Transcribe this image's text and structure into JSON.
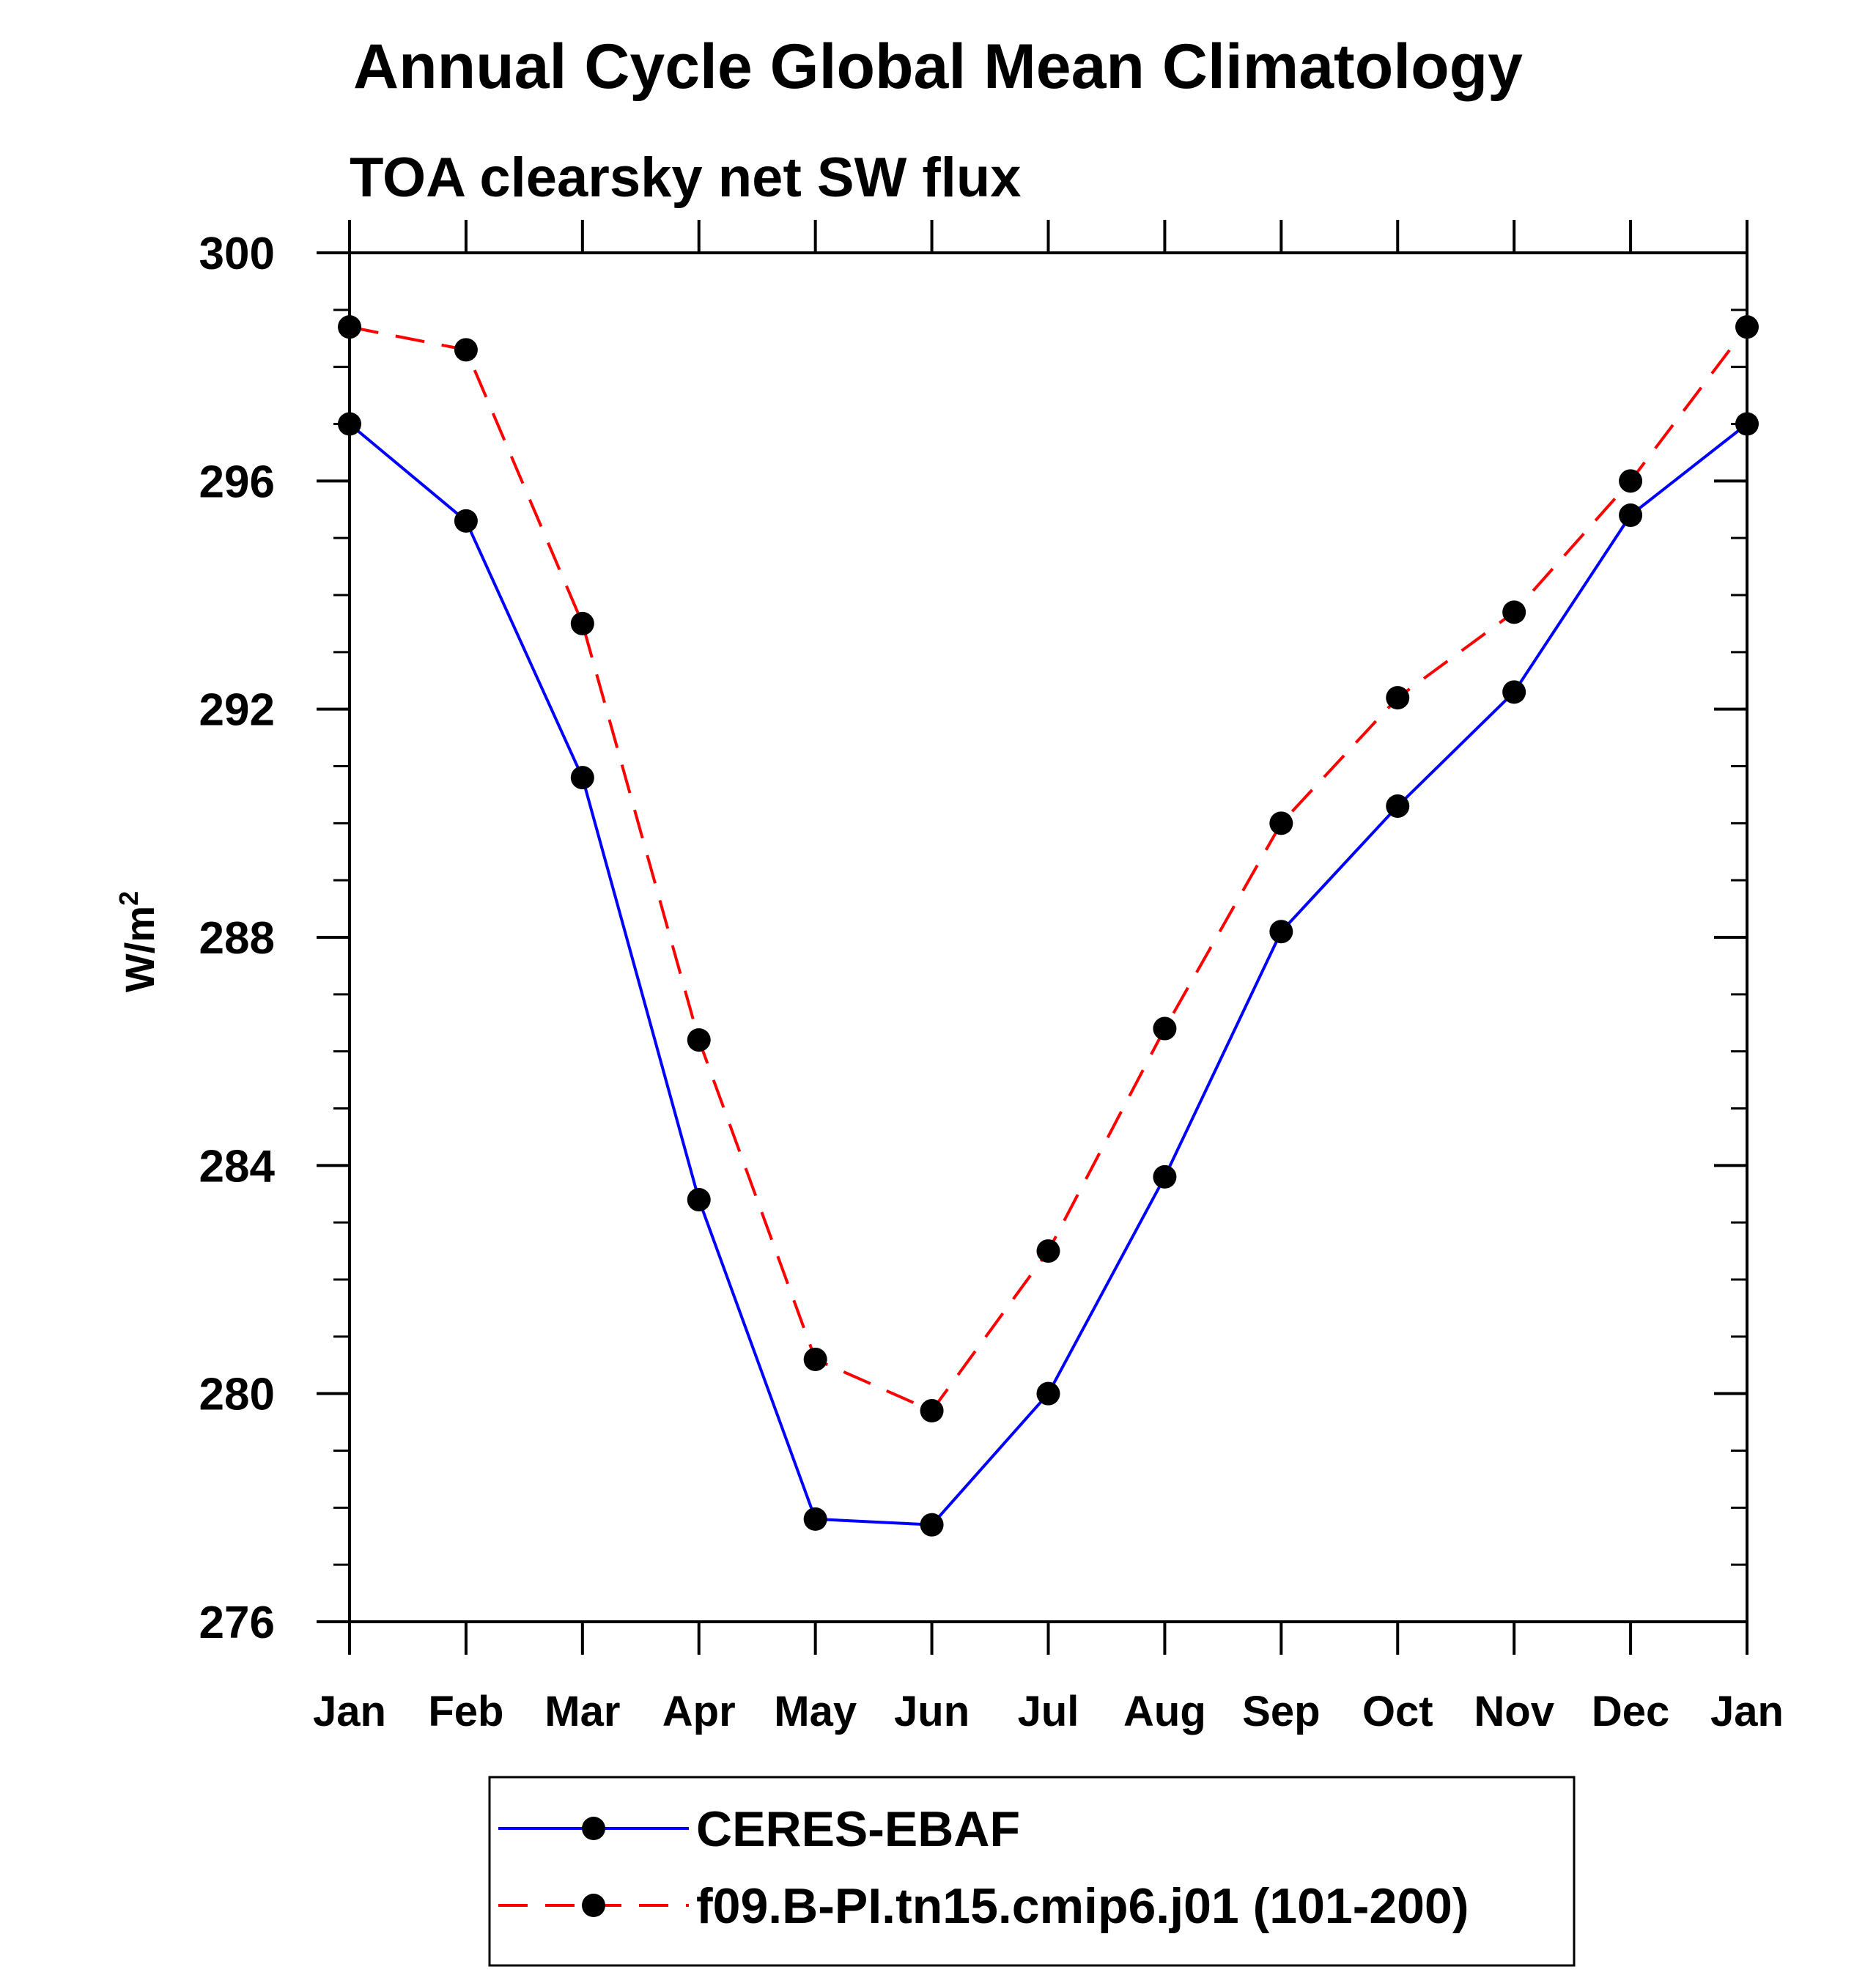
{
  "chart_data": {
    "type": "line",
    "title": "Annual Cycle Global Mean Climatology",
    "subtitle": "TOA clearsky net SW flux",
    "ylabel": "W/m",
    "ylabel_superscript": "2",
    "xlabel": "",
    "ylim": [
      276,
      300
    ],
    "yticks": [
      276,
      280,
      284,
      288,
      292,
      296,
      300
    ],
    "ytick_labels": [
      "276",
      "280",
      "284",
      "288",
      "292",
      "296",
      "300"
    ],
    "y_minor_step": 1,
    "categories": [
      "Jan",
      "Feb",
      "Mar",
      "Apr",
      "May",
      "Jun",
      "Jul",
      "Aug",
      "Sep",
      "Oct",
      "Nov",
      "Dec",
      "Jan"
    ],
    "grid": false,
    "legend_position": "bottom",
    "series": [
      {
        "name": "CERES-EBAF",
        "color": "#0000ff",
        "dash": "solid",
        "marker_color": "#000000",
        "values": [
          297.0,
          295.3,
          290.8,
          283.4,
          277.8,
          277.7,
          280.0,
          283.8,
          288.1,
          290.3,
          292.3,
          295.4,
          297.0
        ]
      },
      {
        "name": "f09.B-PI.tn15.cmip6.j01 (101-200)",
        "color": "#ff0000",
        "dash": "dashed",
        "marker_color": "#000000",
        "values": [
          298.7,
          298.3,
          293.5,
          286.2,
          280.6,
          279.7,
          282.5,
          286.4,
          290.0,
          292.2,
          293.7,
          296.0,
          298.7
        ]
      }
    ]
  }
}
